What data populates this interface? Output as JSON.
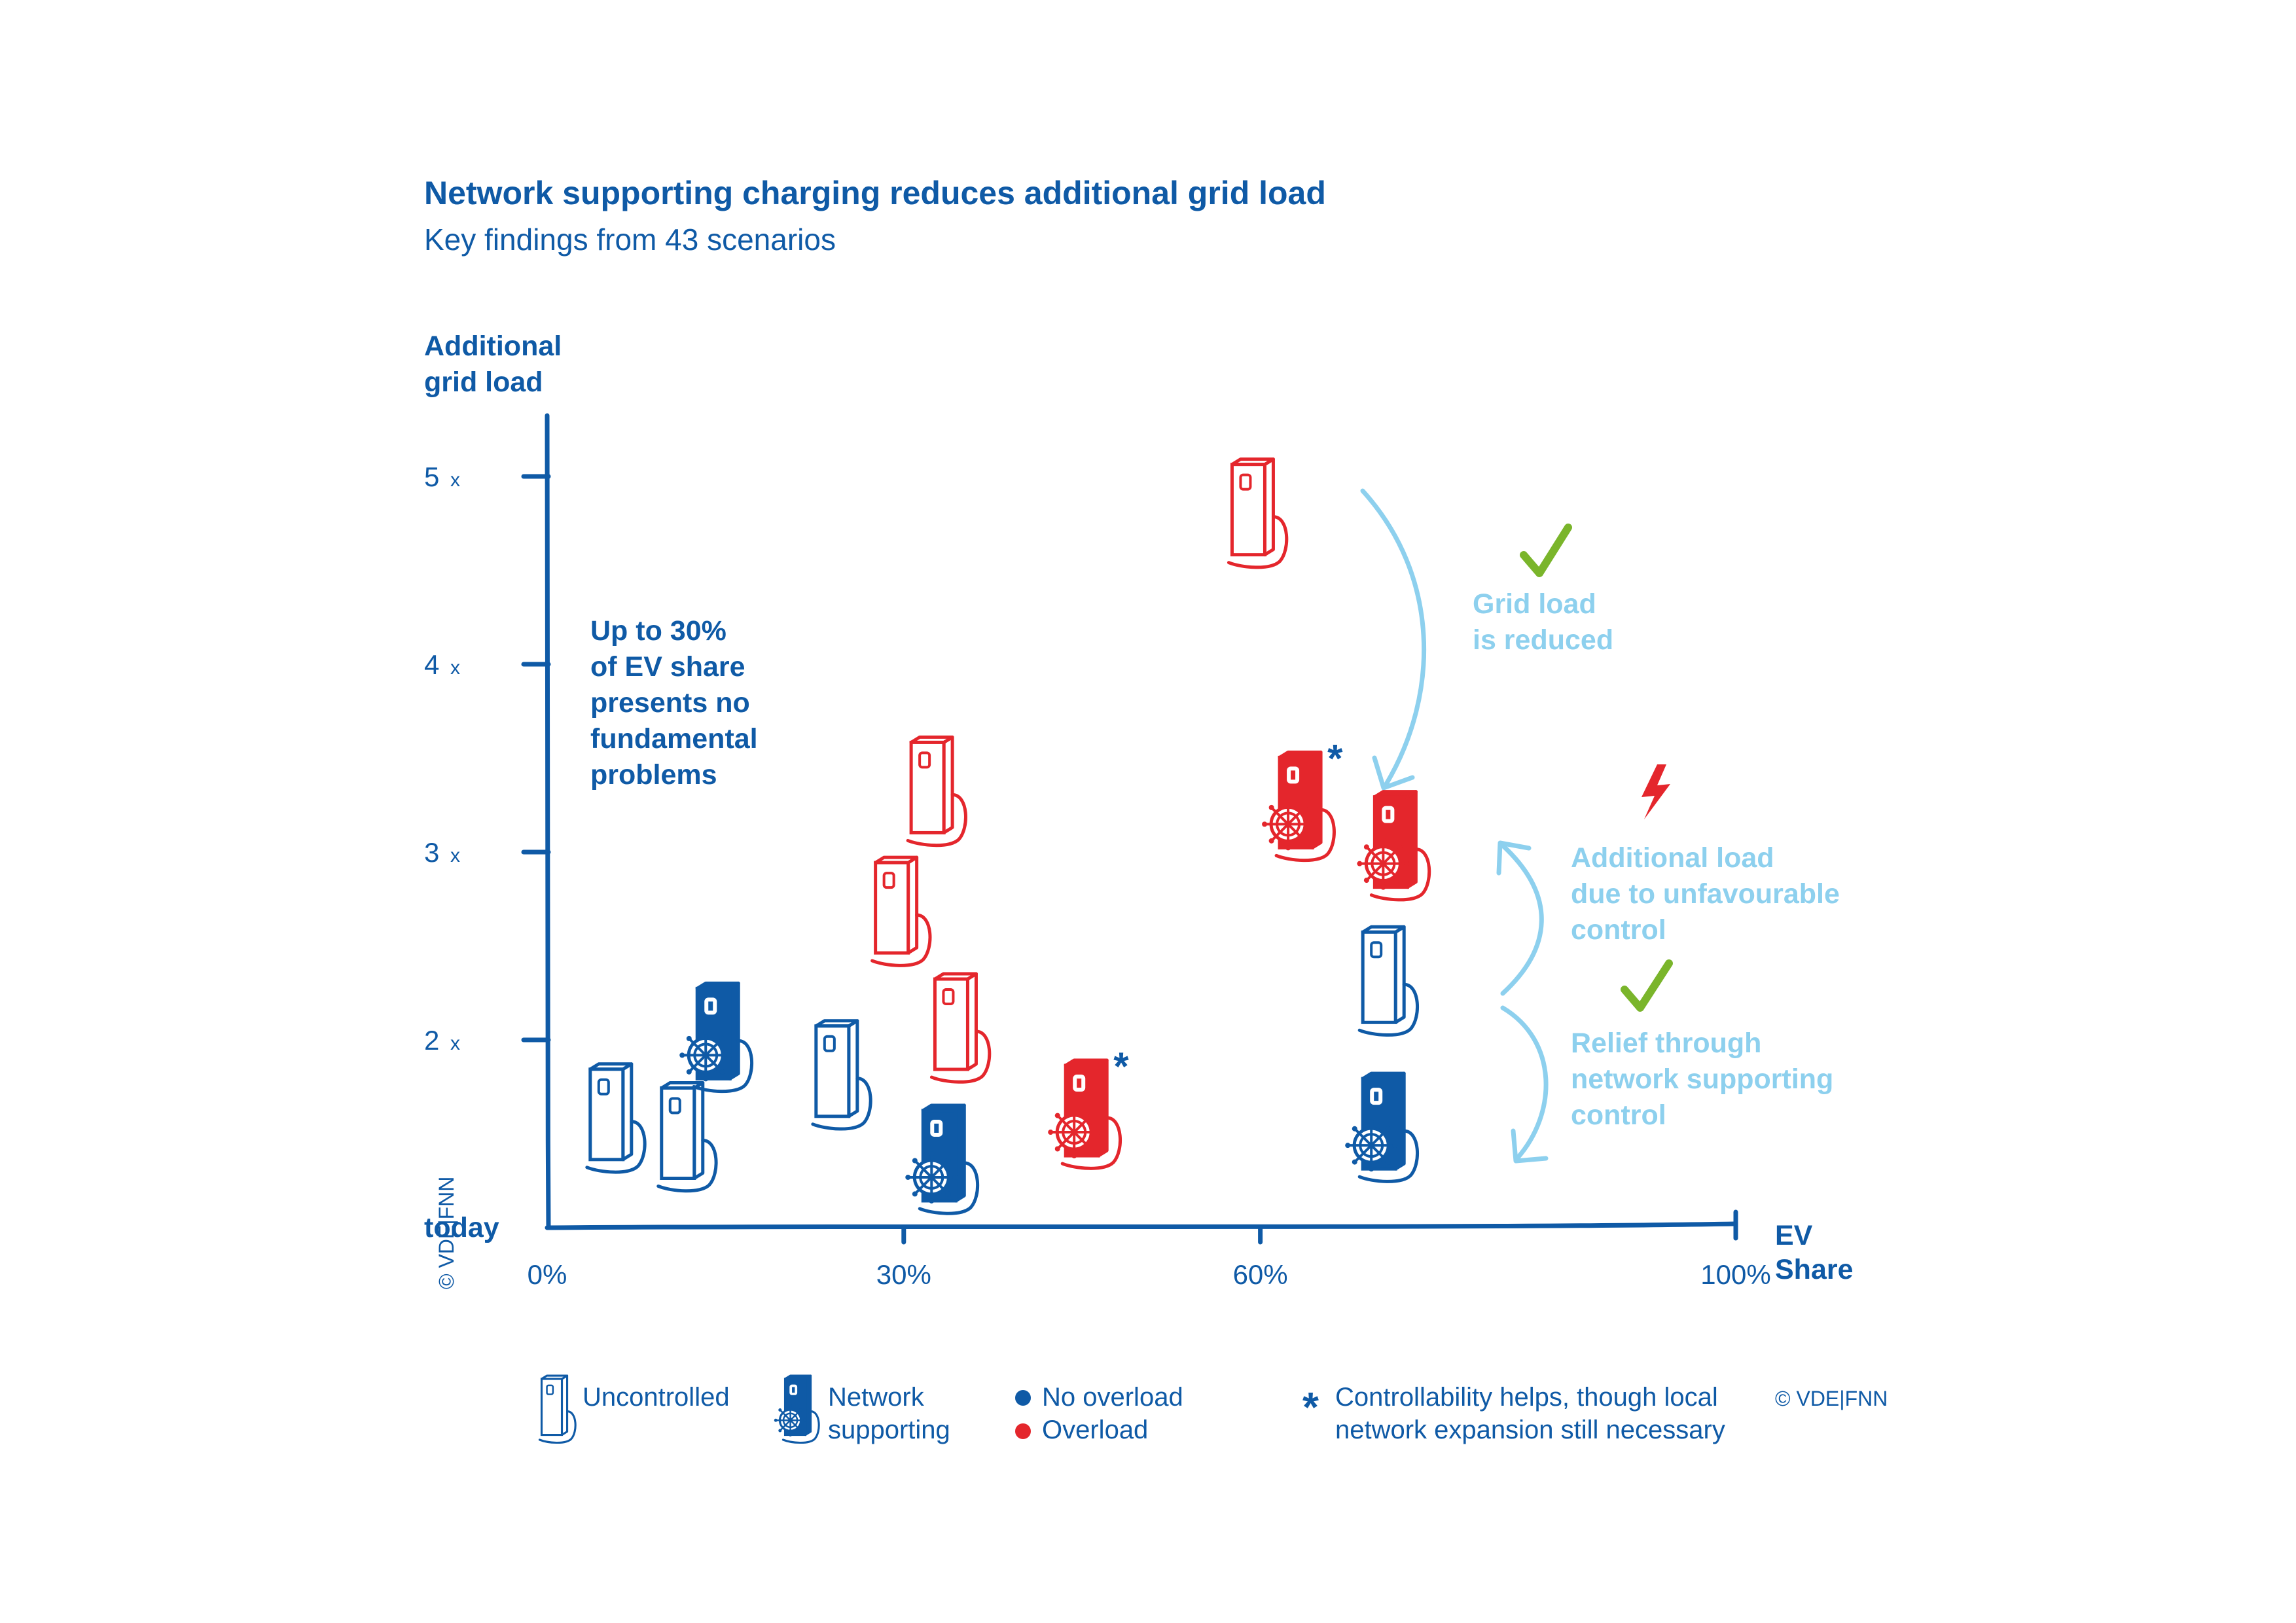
{
  "colors": {
    "blue": "#0f5aa6",
    "red": "#e4262c",
    "light_blue": "#8dd0ee",
    "green": "#7ab52b"
  },
  "chart_data": {
    "type": "scatter",
    "title": "Network supporting charging reduces additional grid load",
    "subtitle": "Key findings from 43 scenarios",
    "ylabel_line1": "Additional",
    "ylabel_line2": "grid load",
    "xlabel_line1": "EV",
    "xlabel_line2": "Share",
    "y_ticks": [
      {
        "value": 5,
        "num": "5",
        "suffix": "x"
      },
      {
        "value": 4,
        "num": "4",
        "suffix": "x"
      },
      {
        "value": 3,
        "num": "3",
        "suffix": "x"
      },
      {
        "value": 2,
        "num": "2",
        "suffix": "x"
      }
    ],
    "y_origin_label": "today",
    "x_ticks": [
      {
        "value": 0,
        "label": "0%"
      },
      {
        "value": 30,
        "label": "30%"
      },
      {
        "value": 60,
        "label": "60%"
      },
      {
        "value": 100,
        "label": "100%"
      }
    ],
    "xlim": [
      0,
      100
    ],
    "ylim": [
      1,
      5.3
    ],
    "points": [
      {
        "ev_share": 5,
        "load": 1.6,
        "control": "uncontrolled",
        "overload": false,
        "asterisk": false
      },
      {
        "ev_share": 11,
        "load": 1.5,
        "control": "uncontrolled",
        "overload": false,
        "asterisk": false
      },
      {
        "ev_share": 14,
        "load": 2.03,
        "control": "network_supporting",
        "overload": false,
        "asterisk": false
      },
      {
        "ev_share": 24,
        "load": 1.83,
        "control": "uncontrolled",
        "overload": false,
        "asterisk": false
      },
      {
        "ev_share": 33,
        "load": 1.38,
        "control": "network_supporting",
        "overload": false,
        "asterisk": false
      },
      {
        "ev_share": 32,
        "load": 3.34,
        "control": "uncontrolled",
        "overload": true,
        "asterisk": false
      },
      {
        "ev_share": 29,
        "load": 2.7,
        "control": "uncontrolled",
        "overload": true,
        "asterisk": false
      },
      {
        "ev_share": 34,
        "load": 2.08,
        "control": "uncontrolled",
        "overload": true,
        "asterisk": false
      },
      {
        "ev_share": 45,
        "load": 1.62,
        "control": "network_supporting",
        "overload": true,
        "asterisk": true
      },
      {
        "ev_share": 59,
        "load": 4.82,
        "control": "uncontrolled",
        "overload": true,
        "asterisk": false
      },
      {
        "ev_share": 63,
        "load": 3.26,
        "control": "network_supporting",
        "overload": true,
        "asterisk": true
      },
      {
        "ev_share": 71,
        "load": 3.05,
        "control": "network_supporting",
        "overload": true,
        "asterisk": false
      },
      {
        "ev_share": 70,
        "load": 2.33,
        "control": "uncontrolled",
        "overload": false,
        "asterisk": false
      },
      {
        "ev_share": 70,
        "load": 1.55,
        "control": "network_supporting",
        "overload": false,
        "asterisk": false
      }
    ],
    "annotations": {
      "left_note": [
        "Up to 30%",
        "of EV share",
        "presents no",
        "fundamental",
        "problems"
      ],
      "grid_reduced": [
        "Grid load",
        "is reduced"
      ],
      "additional_load": [
        "Additional load",
        "due to unfavourable",
        "control"
      ],
      "relief": [
        "Relief through",
        "network supporting",
        "control"
      ]
    },
    "legend": {
      "uncontrolled": "Uncontrolled",
      "network_line1": "Network",
      "network_line2": "supporting",
      "no_overload": "No overload",
      "overload": "Overload",
      "asterisk_symbol": "*",
      "note_line1": "Controllability helps, though local",
      "note_line2": "network expansion still necessary",
      "credit": "© VDE|FNN"
    },
    "side_credit": "© VDE|FNN",
    "grid": false
  }
}
